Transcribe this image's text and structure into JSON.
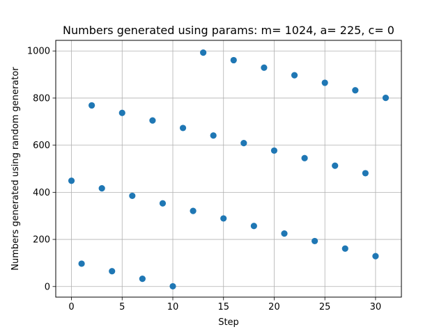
{
  "chart_data": {
    "type": "scatter",
    "title": "Numbers generated using params: m= 1024, a= 225, c= 0",
    "xlabel": "Step",
    "ylabel": "Numbers generated using random generator",
    "xlim": [
      -1.55,
      32.55
    ],
    "ylim": [
      -45,
      1045
    ],
    "xticks": [
      0,
      5,
      10,
      15,
      20,
      25,
      30
    ],
    "yticks": [
      0,
      200,
      400,
      600,
      800,
      1000
    ],
    "grid": true,
    "legend": "none",
    "color": "#1f77b4",
    "x": [
      0,
      1,
      2,
      3,
      4,
      5,
      6,
      7,
      8,
      9,
      10,
      11,
      12,
      13,
      14,
      15,
      16,
      17,
      18,
      19,
      20,
      21,
      22,
      23,
      24,
      25,
      26,
      27,
      28,
      29,
      30,
      31
    ],
    "y": [
      449,
      97,
      769,
      417,
      65,
      737,
      385,
      33,
      705,
      353,
      1,
      673,
      321,
      993,
      641,
      289,
      961,
      609,
      257,
      929,
      577,
      225,
      897,
      545,
      193,
      865,
      513,
      161,
      833,
      481,
      129,
      801
    ]
  }
}
